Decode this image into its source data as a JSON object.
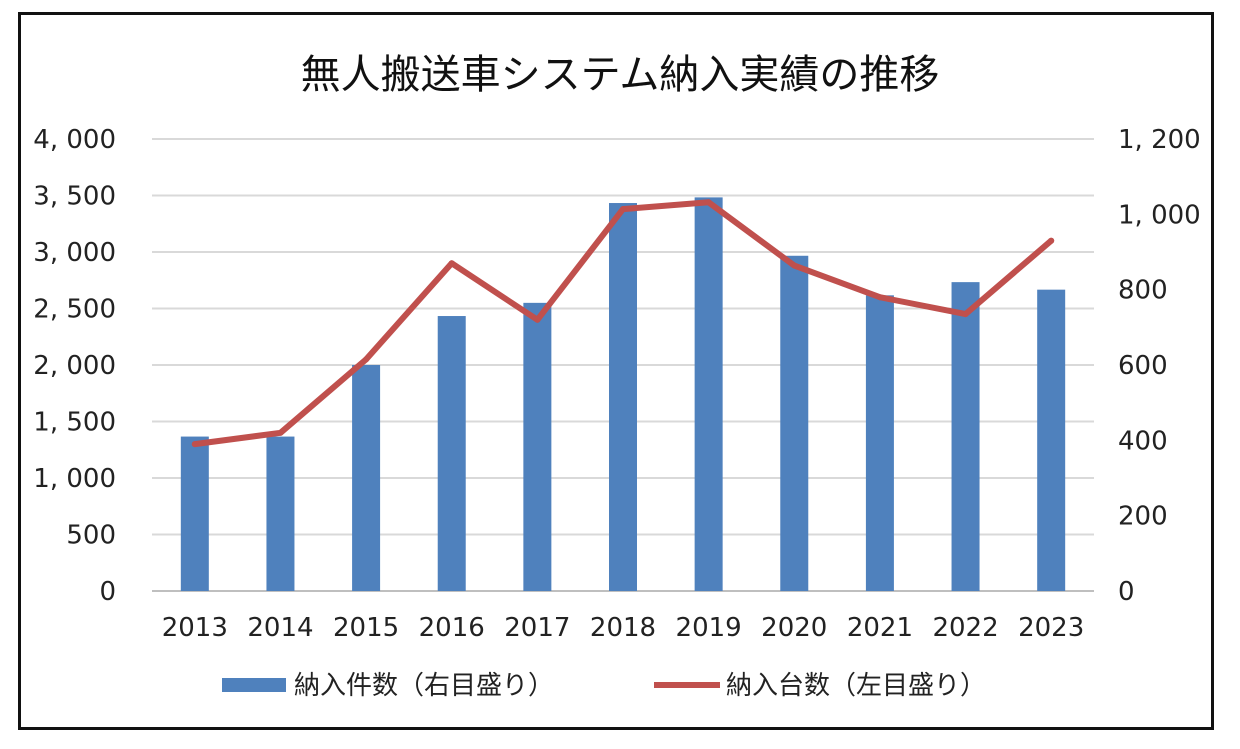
{
  "chart_data": {
    "type": "bar+line",
    "title": "無人搬送車システム納入実績の推移",
    "categories": [
      "2013",
      "2014",
      "2015",
      "2016",
      "2017",
      "2018",
      "2019",
      "2020",
      "2021",
      "2022",
      "2023"
    ],
    "series": [
      {
        "name": "納入件数（右目盛り）",
        "type": "bar",
        "axis": "right",
        "color": "#4f81bd",
        "values": [
          410,
          410,
          600,
          730,
          765,
          1030,
          1045,
          890,
          785,
          820,
          800
        ]
      },
      {
        "name": "納入台数（左目盛り）",
        "type": "line",
        "axis": "left",
        "color": "#c0504d",
        "values": [
          1300,
          1400,
          2050,
          2900,
          2400,
          3380,
          3440,
          2880,
          2600,
          2450,
          3100
        ]
      }
    ],
    "y_left": {
      "ylim": [
        0,
        4000
      ],
      "ticks": [
        0,
        500,
        1000,
        1500,
        2000,
        2500,
        3000,
        3500,
        4000
      ],
      "tick_labels": [
        "0",
        "500",
        "1, 000",
        "1, 500",
        "2, 000",
        "2, 500",
        "3, 000",
        "3, 500",
        "4, 000"
      ]
    },
    "y_right": {
      "ylim": [
        0,
        1200
      ],
      "ticks": [
        0,
        200,
        400,
        600,
        800,
        1000,
        1200
      ],
      "tick_labels": [
        "0",
        "200",
        "400",
        "600",
        "800",
        "1, 000",
        "1, 200"
      ]
    },
    "grid": true,
    "legend": "bottom"
  }
}
